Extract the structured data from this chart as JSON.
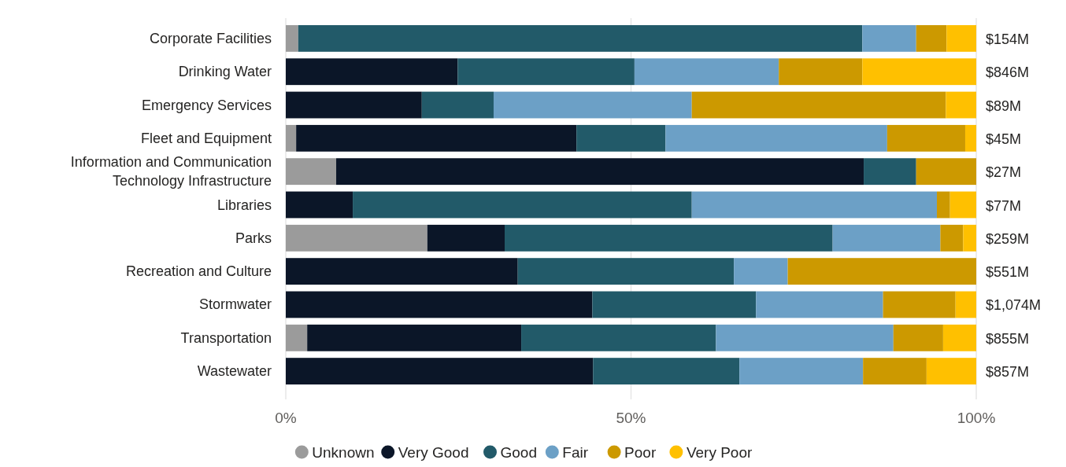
{
  "chart_data": {
    "type": "bar",
    "orientation": "horizontal",
    "stacked": true,
    "categories": [
      "Corporate Facilities",
      "Drinking Water",
      "Emergency Services",
      "Fleet and Equipment",
      "Information and Communication Technology Infrastructure",
      "Libraries",
      "Parks",
      "Recreation and Culture",
      "Stormwater",
      "Transportation",
      "Wastewater"
    ],
    "series": [
      {
        "name": "Unknown",
        "color": "#9b9b9b",
        "values": [
          1.8,
          0,
          0,
          1.5,
          7.3,
          0,
          20.5,
          0,
          0,
          3.1,
          0
        ]
      },
      {
        "name": "Very Good",
        "color": "#0b1628",
        "values": [
          0,
          24.9,
          19.7,
          40.6,
          76.4,
          9.7,
          11.2,
          33.6,
          44.4,
          31.0,
          44.5
        ]
      },
      {
        "name": "Good",
        "color": "#225a69",
        "values": [
          81.7,
          25.6,
          10.4,
          12.9,
          7.6,
          49.1,
          47.5,
          31.3,
          23.7,
          28.2,
          21.2
        ]
      },
      {
        "name": "Fair",
        "color": "#6ca0c6",
        "values": [
          7.8,
          20.9,
          28.7,
          32.1,
          0,
          35.5,
          15.6,
          7.8,
          18.4,
          25.7,
          17.9
        ]
      },
      {
        "name": "Poor",
        "color": "#cc9900",
        "values": [
          4.4,
          12.1,
          36.8,
          11.3,
          8.7,
          1.9,
          3.3,
          27.3,
          10.5,
          7.2,
          9.2
        ]
      },
      {
        "name": "Very Poor",
        "color": "#ffc000",
        "values": [
          4.3,
          16.5,
          4.4,
          1.6,
          0,
          3.8,
          1.9,
          0,
          3.0,
          4.8,
          7.2
        ]
      }
    ],
    "xlim": [
      0,
      100
    ],
    "xticks": [
      {
        "value": 0,
        "label": "0%"
      },
      {
        "value": 50,
        "label": "50%"
      },
      {
        "value": 100,
        "label": "100%"
      }
    ],
    "grid": "x",
    "legend": "bottom",
    "annotations": [
      "$154M",
      "$846M",
      "$89M",
      "$45M",
      "$27M",
      "$77M",
      "$259M",
      "$551M",
      "$1,074M",
      "$855M",
      "$857M"
    ]
  }
}
